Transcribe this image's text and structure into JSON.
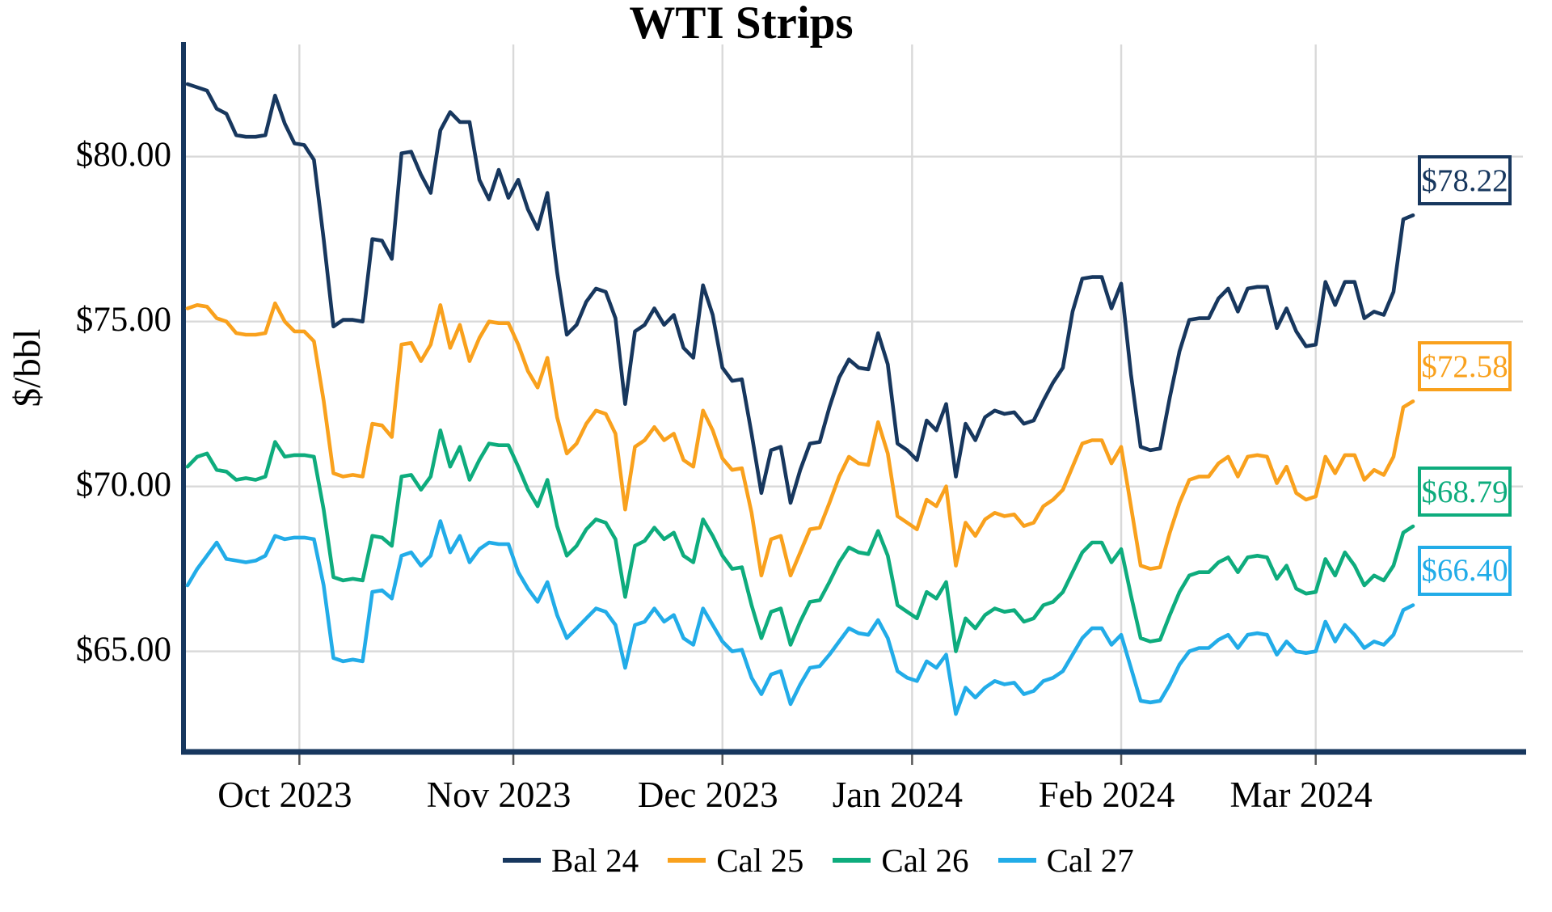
{
  "title": "WTI Strips",
  "y_axis_title": "$/bbl",
  "colors": {
    "axis": "#17375E",
    "gridline": "#D9D9D9",
    "tick": "#595959",
    "bal24": "#17375E",
    "cal25": "#F9A11D",
    "cal26": "#0EAC7D",
    "cal27": "#22ACE8"
  },
  "chart_data": {
    "type": "line",
    "title": "WTI Strips",
    "ylabel": "$/bbl",
    "ylim": [
      62.0,
      83.4
    ],
    "grid": true,
    "legend_position": "bottom",
    "y_ticks": [
      {
        "value": 80,
        "label": "$80.00"
      },
      {
        "value": 75,
        "label": "$75.00"
      },
      {
        "value": 70,
        "label": "$70.00"
      },
      {
        "value": 65,
        "label": "$65.00"
      }
    ],
    "x_axis": {
      "unit": "trading-day",
      "month_ticks": [
        {
          "label": "Oct 2023",
          "tick_index": 11.5
        },
        {
          "label": "Nov 2023",
          "tick_index": 33.5
        },
        {
          "label": "Dec 2023",
          "tick_index": 55
        },
        {
          "label": "Jan 2024",
          "tick_index": 74.5
        },
        {
          "label": "Feb 2024",
          "tick_index": 96
        },
        {
          "label": "Mar 2024",
          "tick_index": 116
        }
      ]
    },
    "series": [
      {
        "name": "Bal 24",
        "color": "#17375E",
        "end_label": "$78.22",
        "values": [
          82.2,
          82.1,
          82.0,
          81.45,
          81.3,
          80.65,
          80.6,
          80.6,
          80.65,
          81.85,
          81.0,
          80.4,
          80.35,
          79.9,
          77.5,
          74.85,
          75.05,
          75.05,
          75.0,
          77.5,
          77.45,
          76.9,
          80.1,
          80.15,
          79.45,
          78.9,
          80.8,
          81.35,
          81.05,
          81.05,
          79.3,
          78.7,
          79.6,
          78.75,
          79.3,
          78.4,
          77.8,
          78.9,
          76.5,
          74.6,
          74.9,
          75.6,
          76.0,
          75.9,
          75.1,
          72.5,
          74.7,
          74.9,
          75.4,
          74.9,
          75.2,
          74.2,
          73.9,
          76.1,
          75.2,
          73.6,
          73.2,
          73.25,
          71.6,
          69.8,
          71.1,
          71.2,
          69.5,
          70.5,
          71.3,
          71.35,
          72.4,
          73.3,
          73.85,
          73.6,
          73.55,
          74.65,
          73.7,
          71.3,
          71.1,
          70.8,
          72.0,
          71.7,
          72.5,
          70.3,
          71.9,
          71.4,
          72.1,
          72.3,
          72.2,
          72.25,
          71.9,
          72.0,
          72.6,
          73.15,
          73.6,
          75.3,
          76.3,
          76.35,
          76.35,
          75.4,
          76.15,
          73.4,
          71.2,
          71.1,
          71.15,
          72.7,
          74.1,
          75.05,
          75.1,
          75.1,
          75.7,
          76.0,
          75.3,
          76.0,
          76.05,
          76.05,
          74.8,
          75.4,
          74.7,
          74.25,
          74.3,
          76.2,
          75.5,
          76.2,
          76.2,
          75.1,
          75.3,
          75.2,
          75.9,
          78.1,
          78.22
        ]
      },
      {
        "name": "Cal 25",
        "color": "#F9A11D",
        "end_label": "$72.58",
        "values": [
          75.4,
          75.5,
          75.45,
          75.1,
          75.0,
          74.65,
          74.6,
          74.6,
          74.65,
          75.55,
          75.0,
          74.7,
          74.7,
          74.4,
          72.6,
          70.4,
          70.3,
          70.35,
          70.3,
          71.9,
          71.85,
          71.5,
          74.3,
          74.35,
          73.8,
          74.3,
          75.5,
          74.2,
          74.9,
          73.8,
          74.5,
          75.0,
          74.95,
          74.95,
          74.3,
          73.5,
          73.0,
          73.9,
          72.1,
          71.0,
          71.3,
          71.9,
          72.3,
          72.2,
          71.6,
          69.3,
          71.2,
          71.4,
          71.8,
          71.4,
          71.6,
          70.8,
          70.6,
          72.3,
          71.7,
          70.85,
          70.5,
          70.55,
          69.2,
          67.3,
          68.4,
          68.5,
          67.3,
          68.0,
          68.7,
          68.75,
          69.5,
          70.3,
          70.9,
          70.7,
          70.65,
          71.95,
          71.0,
          69.1,
          68.9,
          68.7,
          69.6,
          69.4,
          70.0,
          67.6,
          68.9,
          68.5,
          69.0,
          69.2,
          69.1,
          69.15,
          68.8,
          68.9,
          69.4,
          69.6,
          69.9,
          70.6,
          71.3,
          71.4,
          71.4,
          70.7,
          71.2,
          69.4,
          67.6,
          67.5,
          67.55,
          68.6,
          69.5,
          70.2,
          70.3,
          70.3,
          70.7,
          70.9,
          70.3,
          70.9,
          70.95,
          70.9,
          70.1,
          70.6,
          69.8,
          69.6,
          69.7,
          70.9,
          70.4,
          70.95,
          70.95,
          70.2,
          70.5,
          70.35,
          70.9,
          72.4,
          72.58
        ]
      },
      {
        "name": "Cal 26",
        "color": "#0EAC7D",
        "end_label": "$68.79",
        "values": [
          70.6,
          70.9,
          71.0,
          70.5,
          70.45,
          70.2,
          70.25,
          70.2,
          70.3,
          71.35,
          70.9,
          70.95,
          70.95,
          70.9,
          69.3,
          67.25,
          67.15,
          67.2,
          67.15,
          68.5,
          68.45,
          68.2,
          70.3,
          70.35,
          69.9,
          70.3,
          71.7,
          70.6,
          71.2,
          70.2,
          70.8,
          71.3,
          71.25,
          71.25,
          70.6,
          69.9,
          69.4,
          70.2,
          68.8,
          67.9,
          68.2,
          68.7,
          69.0,
          68.9,
          68.4,
          66.65,
          68.2,
          68.35,
          68.75,
          68.4,
          68.6,
          67.9,
          67.7,
          69.0,
          68.5,
          67.9,
          67.5,
          67.55,
          66.4,
          65.4,
          66.2,
          66.3,
          65.2,
          65.9,
          66.5,
          66.55,
          67.1,
          67.7,
          68.15,
          68.0,
          67.95,
          68.65,
          67.9,
          66.4,
          66.2,
          66.0,
          66.8,
          66.6,
          67.1,
          65.0,
          66.0,
          65.7,
          66.1,
          66.3,
          66.2,
          66.25,
          65.9,
          66.0,
          66.4,
          66.5,
          66.8,
          67.4,
          68.0,
          68.3,
          68.3,
          67.7,
          68.1,
          66.7,
          65.4,
          65.3,
          65.35,
          66.1,
          66.8,
          67.3,
          67.4,
          67.4,
          67.7,
          67.85,
          67.4,
          67.85,
          67.9,
          67.85,
          67.2,
          67.6,
          66.9,
          66.75,
          66.8,
          67.8,
          67.3,
          68.0,
          67.6,
          67.0,
          67.3,
          67.15,
          67.6,
          68.6,
          68.79
        ]
      },
      {
        "name": "Cal 27",
        "color": "#22ACE8",
        "end_label": "$66.40",
        "values": [
          67.0,
          67.5,
          67.9,
          68.3,
          67.8,
          67.75,
          67.7,
          67.75,
          67.9,
          68.5,
          68.4,
          68.45,
          68.45,
          68.4,
          67.0,
          64.8,
          64.7,
          64.75,
          64.7,
          66.8,
          66.85,
          66.6,
          67.9,
          68.0,
          67.6,
          67.9,
          68.95,
          68.0,
          68.5,
          67.7,
          68.1,
          68.3,
          68.25,
          68.25,
          67.4,
          66.9,
          66.5,
          67.1,
          66.1,
          65.4,
          65.7,
          66.0,
          66.3,
          66.2,
          65.8,
          64.5,
          65.8,
          65.9,
          66.3,
          65.9,
          66.1,
          65.4,
          65.2,
          66.3,
          65.8,
          65.3,
          65.0,
          65.05,
          64.2,
          63.7,
          64.3,
          64.4,
          63.4,
          64.0,
          64.5,
          64.55,
          64.9,
          65.3,
          65.7,
          65.55,
          65.5,
          65.95,
          65.4,
          64.4,
          64.2,
          64.1,
          64.7,
          64.5,
          64.9,
          63.1,
          63.9,
          63.6,
          63.9,
          64.1,
          64.0,
          64.05,
          63.7,
          63.8,
          64.1,
          64.2,
          64.4,
          64.9,
          65.4,
          65.7,
          65.7,
          65.2,
          65.5,
          64.5,
          63.5,
          63.45,
          63.5,
          64.0,
          64.6,
          65.0,
          65.1,
          65.1,
          65.35,
          65.5,
          65.1,
          65.5,
          65.55,
          65.5,
          64.9,
          65.3,
          65.0,
          64.95,
          65.0,
          65.9,
          65.3,
          65.8,
          65.5,
          65.1,
          65.3,
          65.2,
          65.5,
          66.25,
          66.4
        ]
      }
    ]
  }
}
